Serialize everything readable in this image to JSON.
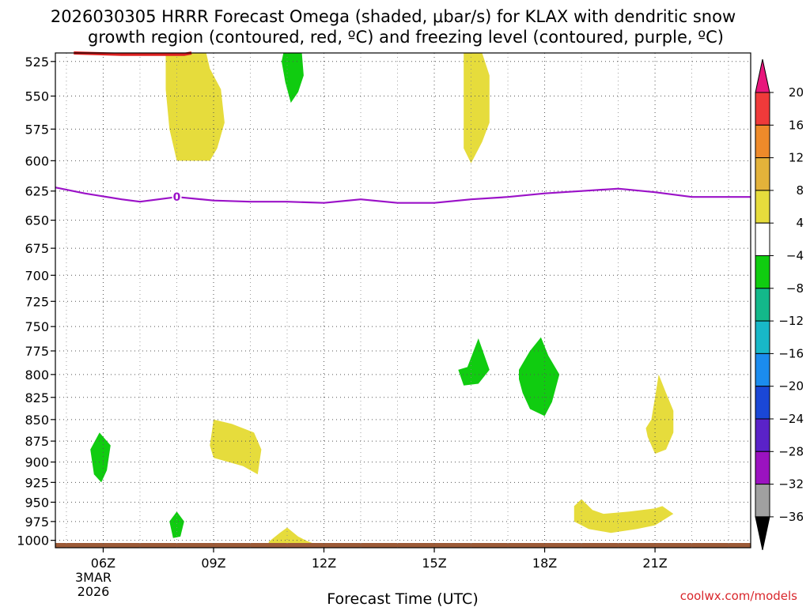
{
  "chart_data": {
    "type": "contour",
    "title_line1": "2026030305 HRRR Forecast Omega (shaded, μbar/s) for KLAX with dendritic snow",
    "title_line2": "growth region (contoured, red, ºC) and freezing level (contoured, purple, ºC)",
    "xlabel": "Forecast Time (UTC)",
    "credit": "coolwx.com/models",
    "date_label": [
      "3MAR",
      "2026"
    ],
    "x_range_hours": [
      4.7,
      23.6
    ],
    "x_ticks": [
      {
        "hour": 6,
        "label": "06Z"
      },
      {
        "hour": 9,
        "label": "09Z"
      },
      {
        "hour": 12,
        "label": "12Z"
      },
      {
        "hour": 15,
        "label": "15Z"
      },
      {
        "hour": 18,
        "label": "18Z"
      },
      {
        "hour": 21,
        "label": "21Z"
      }
    ],
    "pressure_range_mb": [
      1010,
      519
    ],
    "y_ticks": [
      525,
      550,
      575,
      600,
      625,
      650,
      675,
      700,
      725,
      750,
      775,
      800,
      825,
      850,
      875,
      900,
      925,
      950,
      975,
      1000
    ],
    "colorbar": {
      "levels": [
        "20",
        "16",
        "12",
        "8",
        "4",
        "−4",
        "−8",
        "−12",
        "−16",
        "−20",
        "−24",
        "−28",
        "−32",
        "−36"
      ],
      "colors": [
        "#e8177c",
        "#ef3a3a",
        "#ee8a2a",
        "#e3b23a",
        "#e6dc3c",
        "#ffffff",
        "#10cc10",
        "#13b88a",
        "#18b8c8",
        "#1b8cee",
        "#1a47d6",
        "#5a22c8",
        "#9b12c0",
        "#a0a0a0",
        "#000000"
      ]
    },
    "freezing_level": {
      "label": "0",
      "label_hour": 8.0,
      "points": [
        [
          4.7,
          622
        ],
        [
          5.5,
          627
        ],
        [
          6.5,
          632
        ],
        [
          7.0,
          634
        ],
        [
          8.0,
          630
        ],
        [
          9.0,
          633
        ],
        [
          10.0,
          634
        ],
        [
          11.0,
          634
        ],
        [
          12.0,
          635
        ],
        [
          13.0,
          632
        ],
        [
          14.0,
          635
        ],
        [
          15.0,
          635
        ],
        [
          16.0,
          632
        ],
        [
          17.0,
          630
        ],
        [
          18.0,
          627
        ],
        [
          19.0,
          625
        ],
        [
          20.0,
          623
        ],
        [
          21.0,
          626
        ],
        [
          22.0,
          630
        ],
        [
          23.6,
          630
        ]
      ]
    },
    "dgz_contour": {
      "color": "#dd2020",
      "points": [
        [
          5.2,
          518
        ],
        [
          6.5,
          520
        ],
        [
          7.5,
          520
        ],
        [
          8.2,
          520
        ],
        [
          8.4,
          518
        ]
      ]
    },
    "omega_regions": [
      {
        "sign": "positive",
        "color": "#e6dc3c",
        "points": [
          [
            7.7,
            519
          ],
          [
            8.8,
            519
          ],
          [
            8.9,
            530
          ],
          [
            9.2,
            545
          ],
          [
            9.3,
            570
          ],
          [
            9.1,
            590
          ],
          [
            8.9,
            600
          ],
          [
            8.0,
            600
          ],
          [
            7.8,
            575
          ],
          [
            7.7,
            545
          ]
        ]
      },
      {
        "sign": "negative",
        "color": "#10cc10",
        "points": [
          [
            10.9,
            519
          ],
          [
            11.4,
            519
          ],
          [
            11.45,
            535
          ],
          [
            11.3,
            547
          ],
          [
            11.1,
            555
          ],
          [
            10.95,
            540
          ],
          [
            10.85,
            525
          ]
        ]
      },
      {
        "sign": "positive",
        "color": "#e6dc3c",
        "points": [
          [
            15.8,
            519
          ],
          [
            16.3,
            519
          ],
          [
            16.5,
            535
          ],
          [
            16.5,
            570
          ],
          [
            16.3,
            585
          ],
          [
            16.0,
            602
          ],
          [
            15.8,
            590
          ],
          [
            15.8,
            560
          ]
        ]
      },
      {
        "sign": "negative",
        "color": "#10cc10",
        "points": [
          [
            15.9,
            792
          ],
          [
            16.2,
            762
          ],
          [
            16.5,
            795
          ],
          [
            16.2,
            810
          ],
          [
            15.8,
            812
          ],
          [
            15.65,
            795
          ]
        ]
      },
      {
        "sign": "negative",
        "color": "#10cc10",
        "points": [
          [
            17.3,
            795
          ],
          [
            17.6,
            775
          ],
          [
            17.9,
            761
          ],
          [
            18.1,
            780
          ],
          [
            18.4,
            800
          ],
          [
            18.2,
            830
          ],
          [
            18.0,
            846
          ],
          [
            17.6,
            838
          ],
          [
            17.4,
            820
          ],
          [
            17.3,
            805
          ]
        ]
      },
      {
        "sign": "positive",
        "color": "#e6dc3c",
        "points": [
          [
            20.9,
            850
          ],
          [
            21.0,
            825
          ],
          [
            21.1,
            800
          ],
          [
            21.3,
            820
          ],
          [
            21.5,
            840
          ],
          [
            21.5,
            865
          ],
          [
            21.3,
            885
          ],
          [
            21.0,
            890
          ],
          [
            20.8,
            870
          ],
          [
            20.75,
            860
          ]
        ]
      },
      {
        "sign": "negative",
        "color": "#10cc10",
        "points": [
          [
            5.65,
            885
          ],
          [
            5.9,
            865
          ],
          [
            6.2,
            880
          ],
          [
            6.1,
            910
          ],
          [
            5.95,
            925
          ],
          [
            5.75,
            915
          ]
        ]
      },
      {
        "sign": "positive",
        "color": "#e6dc3c",
        "points": [
          [
            8.9,
            880
          ],
          [
            8.95,
            865
          ],
          [
            9.0,
            850
          ],
          [
            9.5,
            855
          ],
          [
            10.1,
            865
          ],
          [
            10.3,
            885
          ],
          [
            10.2,
            915
          ],
          [
            9.8,
            905
          ],
          [
            9.0,
            895
          ]
        ]
      },
      {
        "sign": "positive",
        "color": "#e6dc3c",
        "points": [
          [
            18.8,
            955
          ],
          [
            19.0,
            946
          ],
          [
            19.3,
            960
          ],
          [
            19.6,
            965
          ],
          [
            20.3,
            962
          ],
          [
            21.0,
            958
          ],
          [
            21.2,
            955
          ],
          [
            21.5,
            965
          ],
          [
            21.0,
            980
          ],
          [
            20.5,
            985
          ],
          [
            19.8,
            990
          ],
          [
            19.2,
            985
          ],
          [
            18.8,
            975
          ]
        ]
      },
      {
        "sign": "negative",
        "color": "#10cc10",
        "points": [
          [
            7.8,
            975
          ],
          [
            8.0,
            962
          ],
          [
            8.2,
            975
          ],
          [
            8.1,
            995
          ],
          [
            7.9,
            997
          ]
        ]
      },
      {
        "sign": "positive",
        "color": "#e6dc3c",
        "points": [
          [
            10.5,
            1002
          ],
          [
            10.8,
            990
          ],
          [
            11.0,
            983
          ],
          [
            11.3,
            995
          ],
          [
            11.5,
            1000
          ],
          [
            11.9,
            1008
          ],
          [
            11.5,
            1008
          ],
          [
            10.5,
            1008
          ]
        ]
      }
    ],
    "surface": {
      "pressure_mb": 1010,
      "color": "#9c5a37"
    }
  }
}
